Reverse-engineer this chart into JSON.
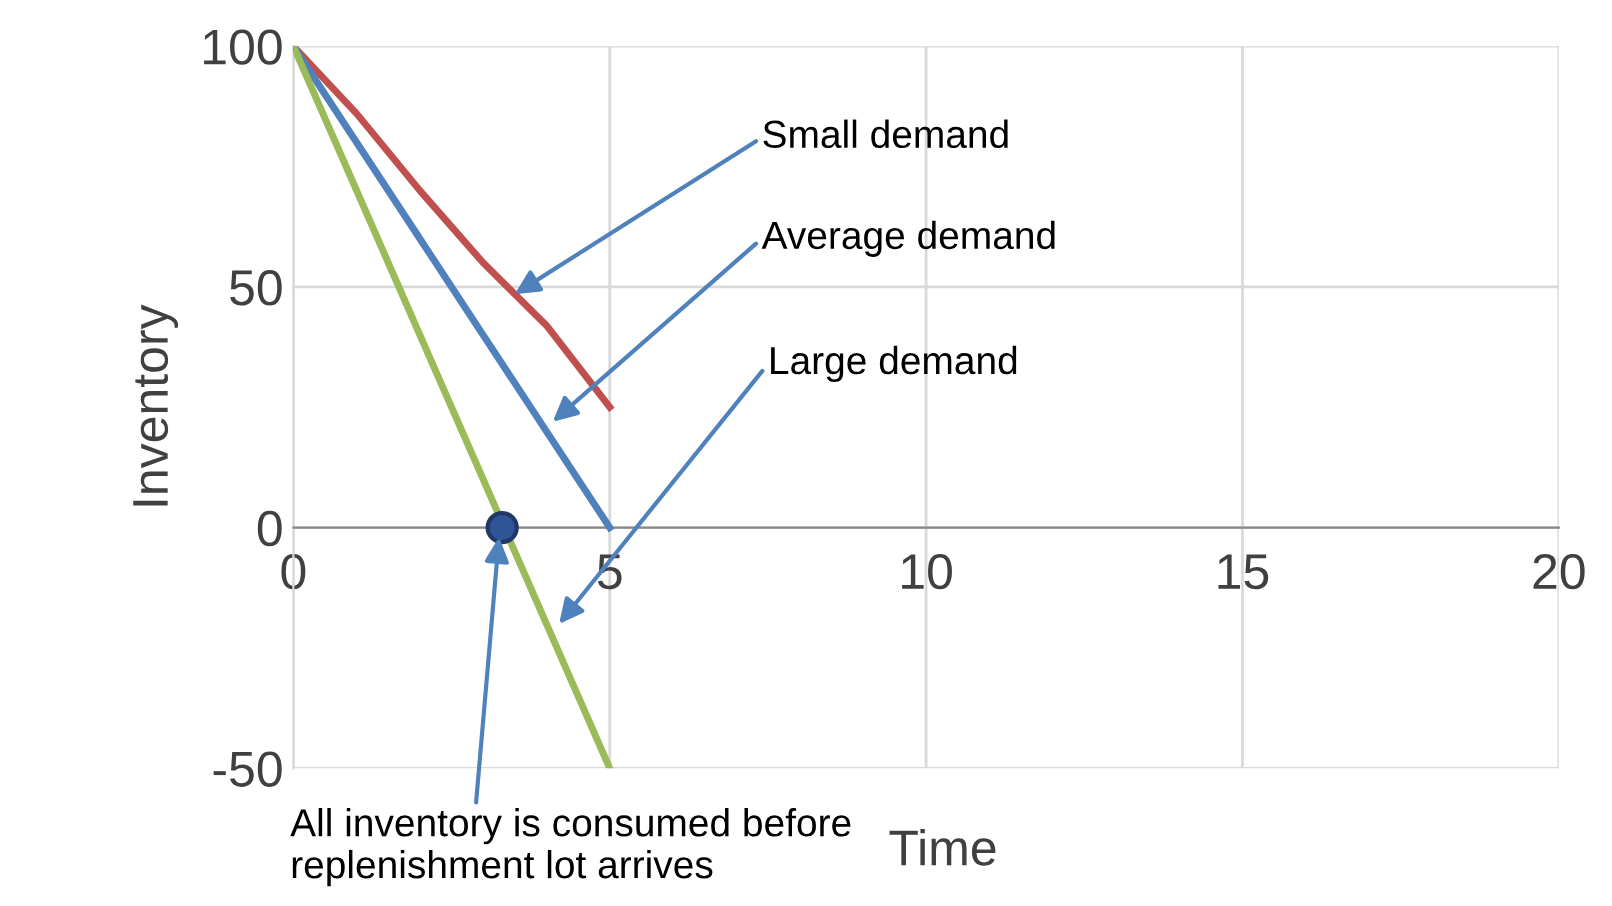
{
  "chart_data": {
    "type": "line",
    "xlabel": "Time",
    "ylabel": "Inventory",
    "xlim": [
      0,
      20
    ],
    "xticks": [
      0,
      5,
      10,
      15,
      20
    ],
    "ylim": [
      -50,
      100
    ],
    "yticks": [
      -50,
      0,
      50,
      100
    ],
    "grid": true,
    "legend": false,
    "marker": "none",
    "line_style": "solid",
    "series": [
      {
        "color": "#c0504d",
        "x": [
          0,
          1,
          2,
          3,
          4,
          5
        ],
        "values": [
          100,
          86,
          70,
          55,
          42,
          25
        ]
      },
      {
        "color": "#4f81bd",
        "x": [
          0,
          1,
          2,
          3,
          4,
          5
        ],
        "values": [
          100,
          80,
          60,
          40,
          20,
          0
        ]
      },
      {
        "color": "#9bbb59",
        "x": [
          0,
          1,
          2,
          3,
          4,
          5
        ],
        "values": [
          100,
          70,
          40,
          10,
          -20,
          -50
        ]
      },
      {
        "type": "scatter",
        "color": "#2f5597",
        "x": [
          3.3
        ],
        "values": [
          0
        ],
        "marker": "circle"
      }
    ],
    "annotations": [
      {
        "text": "Small demand",
        "x": 3.5,
        "y": 48.5
      },
      {
        "text": "Average demand",
        "x": 4.1,
        "y": 22
      },
      {
        "text": "Large demand",
        "x": 4.2,
        "y": -20
      },
      {
        "text": "All inventory is consumed before\nreplenishment lot arrives",
        "x": 3.25,
        "y": -2
      }
    ]
  }
}
